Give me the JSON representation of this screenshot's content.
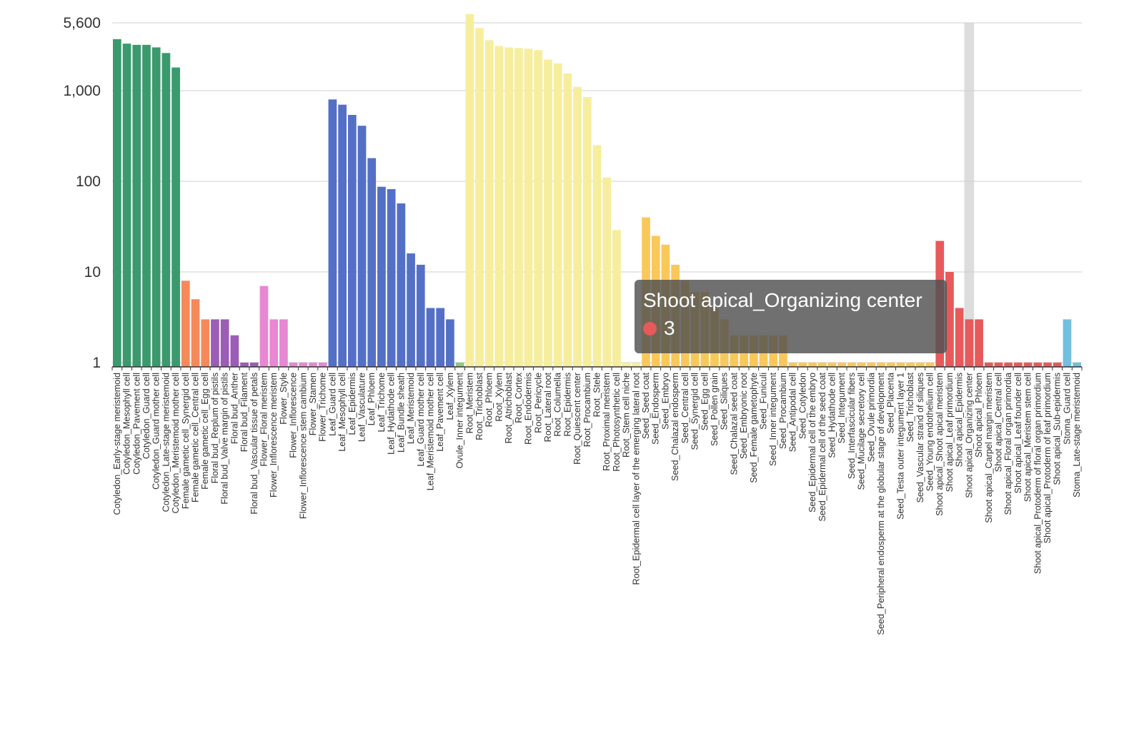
{
  "chart_data": {
    "type": "bar",
    "yscale": "log",
    "ylim": [
      1,
      5600
    ],
    "yticks": [
      1,
      10,
      100,
      1000,
      5600
    ],
    "ytick_labels": [
      "1",
      "10",
      "100",
      "1,000",
      "5,600"
    ],
    "grid": true,
    "highlight_category": "Shoot apical_Organizing center",
    "categories": [
      "Cotyledon_Early-stage meristemoid",
      "Cotyledon_Mesophyll cell",
      "Cotyledon_Pavement cell",
      "Cotyledon_Guard cell",
      "Cotyledon_Guard mother cell",
      "Cotyledon_Late-stage meristemoid",
      "Cotyledon_Meristemoid mother cell",
      "Female gametic cell_Synergid cell",
      "Female gametic cell_Central cell",
      "Female gametic cell_Egg cell",
      "Floral bud_Replum of pistils",
      "Floral bud_Valve margin of pistils",
      "Floral bud_Anther",
      "Floral bud_Filament",
      "Floral bud_Vascular tissue of petals",
      "Flower_Floral meristem",
      "Flower_Inflorescence meristem",
      "Flower_Style",
      "Flower_Inflorescence",
      "Flower_Inflorescence stem cambium",
      "Flower_Stamen",
      "Flower_Trichome",
      "Leaf_Guard cell",
      "Leaf_Mesophyll cell",
      "Leaf_Epidermis",
      "Leaf_Vasculature",
      "Leaf_Phloem",
      "Leaf_Trichome",
      "Leaf_Hydathode cell",
      "Leaf_Bundle sheath",
      "Leaf_Meristemoid",
      "Leaf_Guard mother cell",
      "Leaf_Meristemoid mother cell",
      "Leaf_Pavement cell",
      "Leaf_Xylem",
      "Ovule_Inner integument",
      "Root_Meristem",
      "Root_Trichoblast",
      "Root_Phloem",
      "Root_Xylem",
      "Root_Atrichoblast",
      "Root_Cortex",
      "Root_Endodermis",
      "Root_Pericycle",
      "Root_Lateral root",
      "Root_Columella",
      "Root_Epidermis",
      "Root_Quiescent center",
      "Root_Procambium",
      "Root_Stele",
      "Root_Proximal meristem",
      "Root_Photosynthetic cell",
      "Root_Stem cell niche",
      "Root_Epidermal cell layer of the emerging lateral root",
      "Seed_Seed coat",
      "Seed_Endosperm",
      "Seed_Embryo",
      "Seed_Chalazal endosperm",
      "Seed_Central cell",
      "Seed_Synergid cell",
      "Seed_Egg cell",
      "Seed_Pollen grain",
      "Seed_Siliques",
      "Seed_Chalazal seed coat",
      "Seed_Embryonic root",
      "Seed_Female gametophyte",
      "Seed_Funiculi",
      "Seed_Inner integument",
      "Seed_Procambium",
      "Seed_Antipodal cell",
      "Seed_Cotyledon",
      "Seed_Epidermal cell of the embryo",
      "Seed_Epidermal cell of the seed coat",
      "Seed_Hydathode cell",
      "Seed_Integument",
      "Seed_Interfascicular fibers",
      "Seed_Mucilage secretory cell",
      "Seed_Ovule primordia",
      "Seed_Peripheral endosperm at the globular stage of development",
      "Seed_Placenta",
      "Seed_Testa outer integument layer 1",
      "Seed_Trichoblast",
      "Seed_Vascular strand of siliques",
      "Seed_Young endothelium cell",
      "Shoot apical_Shoot apical meristem",
      "Shoot apical_Leaf primordium",
      "Shoot apical_Epidermis",
      "Shoot apical_Organizing center",
      "Shoot apical_Phloem",
      "Shoot apical_Carpel margin meristem",
      "Shoot apical_Central cell",
      "Shoot apical_Floral organ primordia",
      "Shoot apical_Leaf founder cell",
      "Shoot apical_Meristem stem cell",
      "Shoot apical_Protoderm of floral organ primordium",
      "Shoot apical_Protoderm of leaf primordium",
      "Shoot apical_Sub-epidermis",
      "Stoma_Guard cell",
      "Stoma_Late-stage meristemoid"
    ],
    "values": [
      3700,
      3300,
      3200,
      3200,
      3000,
      2600,
      1800,
      8,
      5,
      3,
      3,
      3,
      2,
      1,
      1,
      7,
      3,
      3,
      1,
      1,
      1,
      1,
      800,
      700,
      540,
      410,
      180,
      87,
      82,
      57,
      16,
      12,
      4,
      4,
      3,
      1,
      7000,
      4900,
      3600,
      3100,
      3000,
      2950,
      2900,
      2800,
      2200,
      2000,
      1550,
      1100,
      850,
      250,
      110,
      29,
      1,
      1,
      40,
      25,
      20,
      12,
      8,
      6,
      6,
      4,
      3,
      2,
      2,
      2,
      2,
      2,
      2,
      1,
      1,
      1,
      1,
      1,
      1,
      1,
      1,
      1,
      1,
      1,
      1,
      1,
      1,
      1,
      22,
      10,
      4,
      3,
      3,
      1,
      1,
      1,
      1,
      1,
      1,
      1,
      1,
      3,
      1
    ],
    "color_groups": [
      {
        "prefix": "Cotyledon_",
        "color": "#3a9a6e"
      },
      {
        "prefix": "Female gametic cell_",
        "color": "#f6895a"
      },
      {
        "prefix": "Floral bud_",
        "color": "#9b5db5"
      },
      {
        "prefix": "Flower_",
        "color": "#e688d2"
      },
      {
        "prefix": "Leaf_",
        "color": "#5470c6"
      },
      {
        "prefix": "Ovule_",
        "color": "#90c97e"
      },
      {
        "prefix": "Root_",
        "color": "#f6ee9c"
      },
      {
        "prefix": "Seed_",
        "color": "#f9c85b"
      },
      {
        "prefix": "Shoot apical_",
        "color": "#e8595b"
      },
      {
        "prefix": "Stoma_",
        "color": "#71c0de"
      }
    ]
  },
  "tooltip": {
    "title": "Shoot apical_Organizing center",
    "value": "3",
    "marker_color": "#e8595b"
  }
}
